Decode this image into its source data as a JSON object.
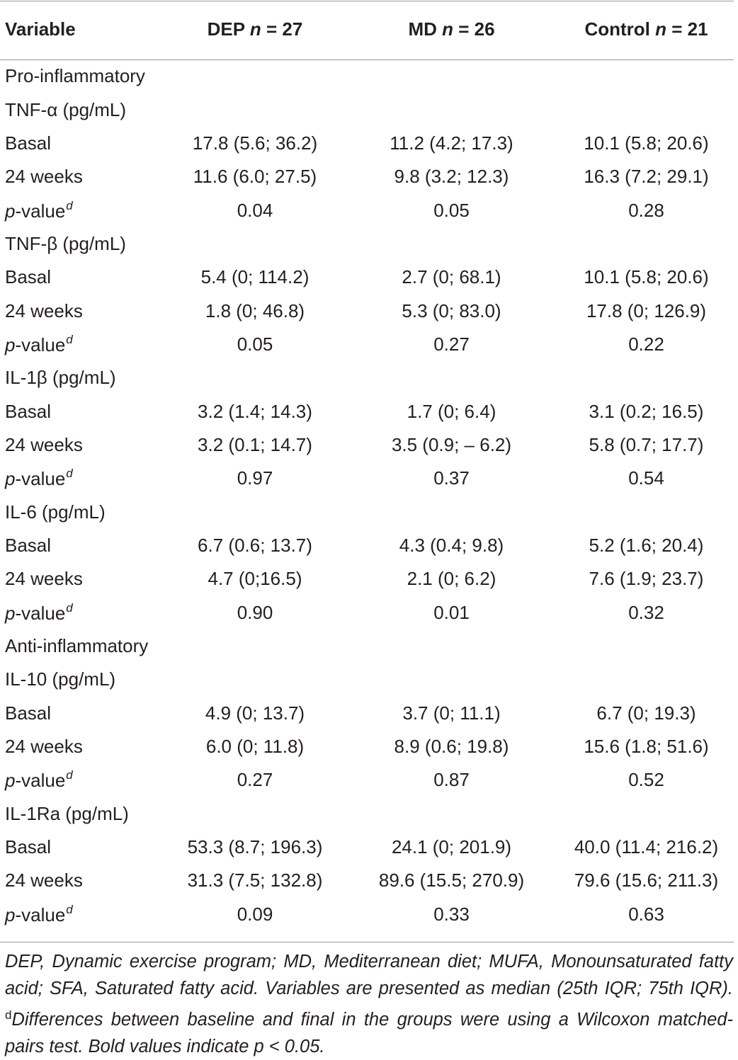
{
  "header": {
    "variable": "Variable",
    "groups": [
      {
        "name": "DEP",
        "n_label": "n",
        "n_value": "= 27"
      },
      {
        "name": "MD",
        "n_label": "n",
        "n_value": "= 26"
      },
      {
        "name": "Control",
        "n_label": "n",
        "n_value": "= 21"
      }
    ]
  },
  "sections": [
    {
      "title": "Pro-inflammatory",
      "variables": [
        {
          "name": "TNF-α (pg/mL)",
          "basal": [
            "17.8 (5.6; 36.2)",
            "11.2 (4.2; 17.3)",
            "10.1 (5.8; 20.6)"
          ],
          "weeks24": [
            "11.6 (6.0; 27.5)",
            "9.8 (3.2; 12.3)",
            "16.3 (7.2; 29.1)"
          ],
          "pvalues": [
            "0.04",
            "0.05",
            "0.28"
          ]
        },
        {
          "name": "TNF-β (pg/mL)",
          "basal": [
            "5.4 (0; 114.2)",
            "2.7 (0; 68.1)",
            "10.1 (5.8; 20.6)"
          ],
          "weeks24": [
            "1.8 (0; 46.8)",
            "5.3 (0; 83.0)",
            "17.8 (0; 126.9)"
          ],
          "pvalues": [
            "0.05",
            "0.27",
            "0.22"
          ]
        },
        {
          "name": "IL-1β (pg/mL)",
          "basal": [
            "3.2 (1.4; 14.3)",
            "1.7 (0; 6.4)",
            "3.1 (0.2; 16.5)"
          ],
          "weeks24": [
            "3.2 (0.1; 14.7)",
            "3.5 (0.9; – 6.2)",
            "5.8 (0.7; 17.7)"
          ],
          "pvalues": [
            "0.97",
            "0.37",
            "0.54"
          ]
        },
        {
          "name": "IL-6 (pg/mL)",
          "basal": [
            "6.7 (0.6; 13.7)",
            "4.3 (0.4; 9.8)",
            "5.2 (1.6; 20.4)"
          ],
          "weeks24": [
            "4.7 (0;16.5)",
            "2.1 (0; 6.2)",
            "7.6 (1.9; 23.7)"
          ],
          "pvalues": [
            "0.90",
            "0.01",
            "0.32"
          ]
        }
      ]
    },
    {
      "title": "Anti-inflammatory",
      "variables": [
        {
          "name": "IL-10 (pg/mL)",
          "basal": [
            "4.9 (0; 13.7)",
            "3.7 (0; 11.1)",
            "6.7 (0; 19.3)"
          ],
          "weeks24": [
            "6.0 (0; 11.8)",
            "8.9 (0.6; 19.8)",
            "15.6 (1.8; 51.6)"
          ],
          "pvalues": [
            "0.27",
            "0.87",
            "0.52"
          ]
        },
        {
          "name": "IL-1Ra (pg/mL)",
          "basal": [
            "53.3 (8.7; 196.3)",
            "24.1 (0; 201.9)",
            "40.0 (11.4; 216.2)"
          ],
          "weeks24": [
            "31.3 (7.5; 132.8)",
            "89.6 (15.5; 270.9)",
            "79.6 (15.6; 211.3)"
          ],
          "pvalues": [
            "0.09",
            "0.33",
            "0.63"
          ]
        }
      ]
    }
  ],
  "row_labels": {
    "basal": "Basal",
    "weeks24": "24 weeks",
    "pvalue_p": "p",
    "pvalue_rest": "-value",
    "pvalue_sup": "d"
  },
  "footnote": {
    "part1": "DEP, Dynamic exercise program; MD, Mediterranean diet; MUFA, Monounsaturated fatty acid; SFA, Saturated fatty acid. Variables are presented as median (25th IQR; 75th IQR). ",
    "sup": "d",
    "part2": "Differences between baseline and final in the groups were using a Wilcoxon matched-pairs test. Bold values indicate p < 0.05."
  }
}
